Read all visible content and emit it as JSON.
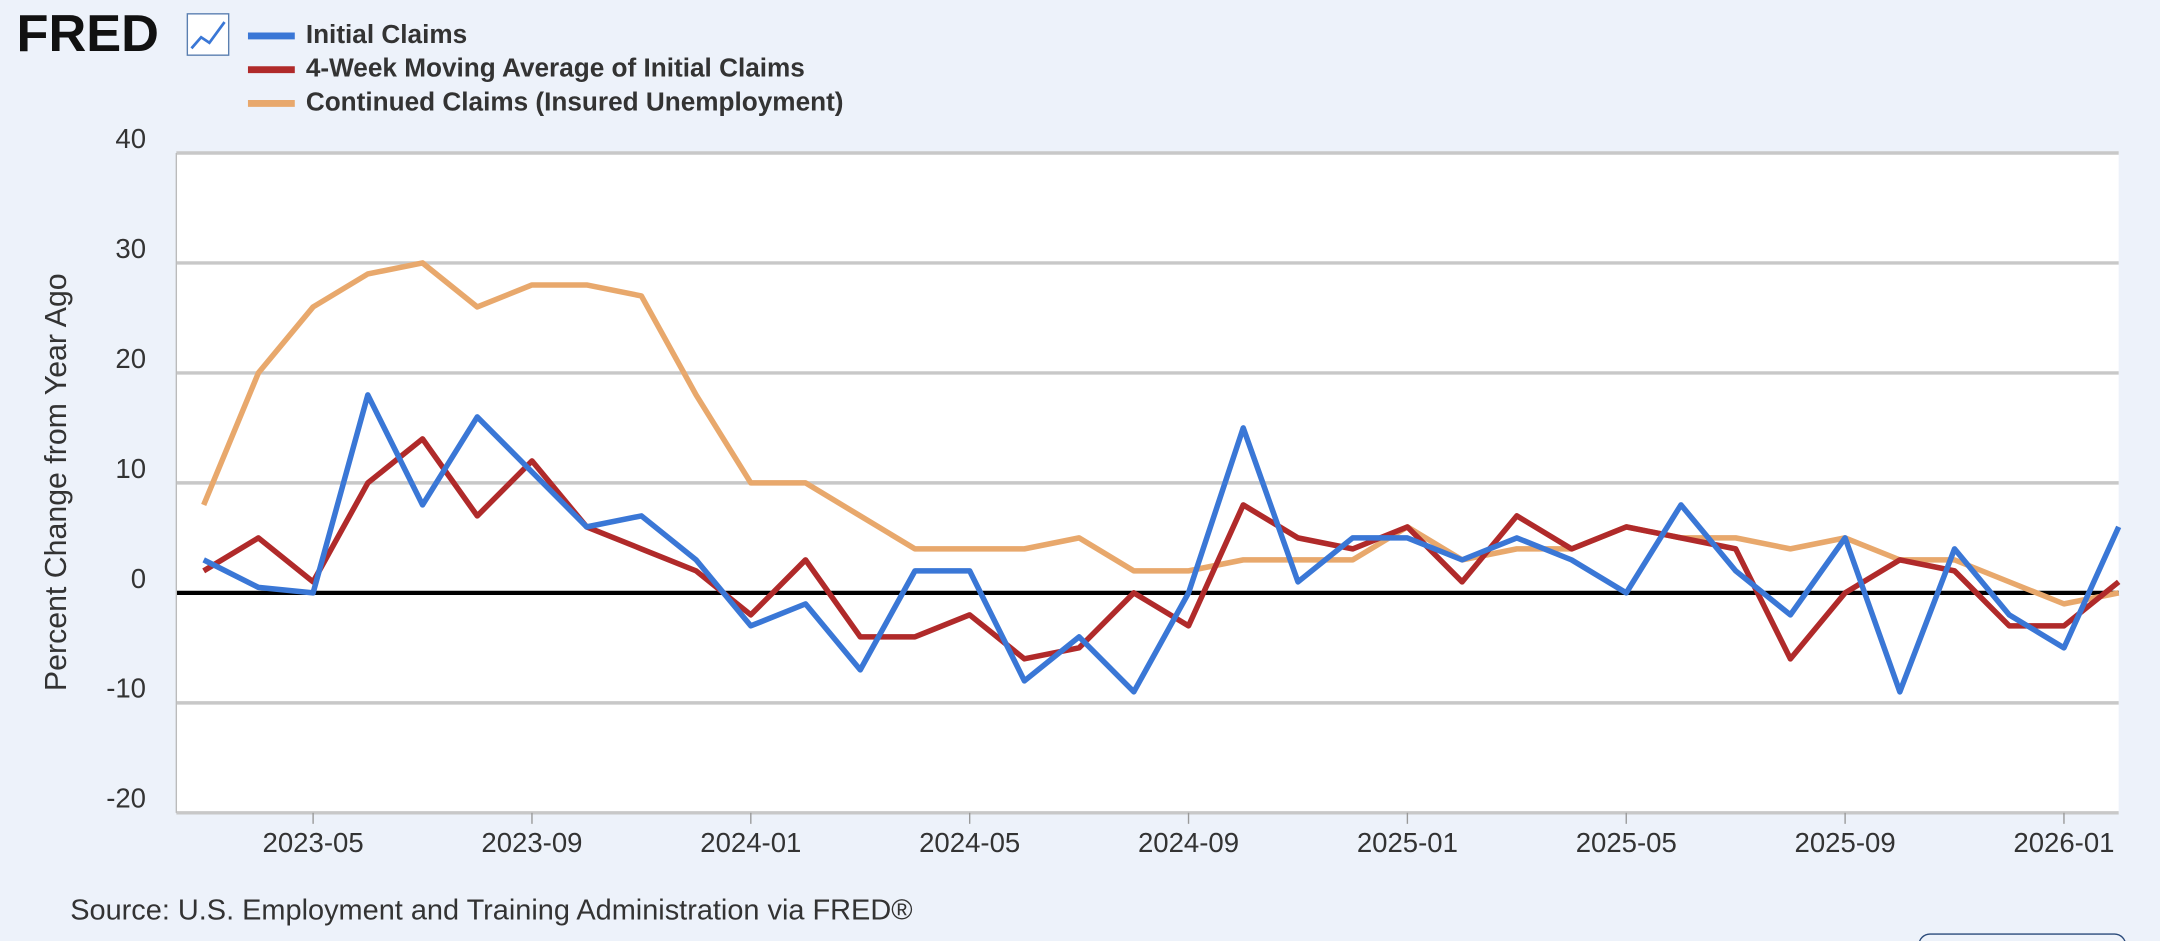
{
  "logo": "FRED",
  "source": "Source: U.S. Employment and Training Administration via FRED®",
  "chart_data": {
    "type": "line",
    "y_label": "Percent Change from Year Ago",
    "x": [
      "2023-03",
      "2023-04",
      "2023-05",
      "2023-06",
      "2023-07",
      "2023-08",
      "2023-09",
      "2023-10",
      "2023-11",
      "2023-12",
      "2024-01",
      "2024-02",
      "2024-03",
      "2024-04",
      "2024-05",
      "2024-06",
      "2024-07",
      "2024-08",
      "2024-09",
      "2024-10",
      "2024-11",
      "2024-12",
      "2025-01",
      "2025-02",
      "2025-03",
      "2025-04",
      "2025-05",
      "2025-06",
      "2025-07",
      "2025-08",
      "2025-09",
      "2025-10",
      "2025-11",
      "2025-12",
      "2026-01",
      "2026-02"
    ],
    "series": [
      {
        "name": "Initial Claims",
        "color": "#3a77d6",
        "values": [
          3,
          0.5,
          0,
          18,
          8,
          16,
          11,
          6,
          7,
          3,
          -3,
          -1,
          -7,
          2,
          2,
          -8,
          -4,
          -9,
          0,
          15,
          1,
          5,
          5,
          3,
          5,
          3,
          0,
          8,
          2,
          -2,
          5,
          -9,
          4,
          -2,
          -5,
          6
        ]
      },
      {
        "name": "4-Week Moving Average of Initial Claims",
        "color": "#b02a2a",
        "values": [
          2,
          5,
          1,
          10,
          14,
          7,
          12,
          6,
          4,
          2,
          -2,
          3,
          -4,
          -4,
          -2,
          -6,
          -5,
          0,
          -3,
          8,
          5,
          4,
          6,
          1,
          7,
          4,
          6,
          5,
          4,
          -6,
          0,
          3,
          2,
          -3,
          -3,
          1
        ]
      },
      {
        "name": "Continued Claims (Insured Unemployment)",
        "color": "#e8a86c",
        "values": [
          8,
          20,
          26,
          29,
          30,
          26,
          28,
          28,
          27,
          18,
          10,
          10,
          7,
          4,
          4,
          4,
          5,
          2,
          2,
          3,
          3,
          3,
          6,
          3,
          4,
          4,
          6,
          5,
          5,
          4,
          5,
          3,
          3,
          1,
          -1,
          0
        ]
      }
    ],
    "xlim": [
      "2023-03",
      "2026-02"
    ],
    "xticks": [
      "2023-05",
      "2023-09",
      "2024-01",
      "2024-05",
      "2024-09",
      "2025-01",
      "2025-05",
      "2025-09",
      "2026-01"
    ],
    "ylim": [
      -20,
      40
    ],
    "yticks": [
      -20,
      -10,
      0,
      10,
      20,
      30,
      40
    ],
    "grid": true
  }
}
